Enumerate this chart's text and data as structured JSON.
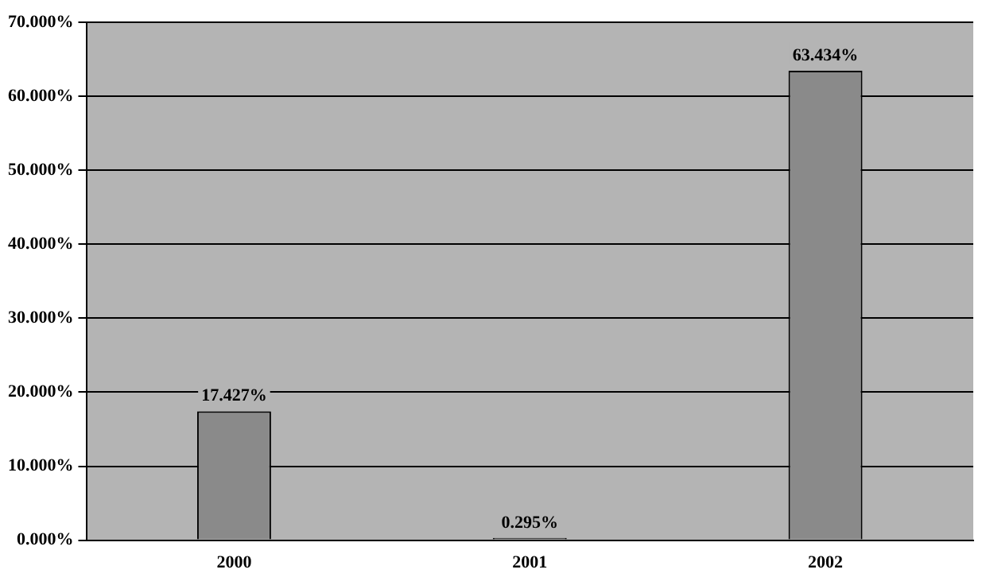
{
  "chart_data": {
    "type": "bar",
    "categories": [
      "2000",
      "2001",
      "2002"
    ],
    "values": [
      17.427,
      0.295,
      63.434
    ],
    "value_labels": [
      "17.427%",
      "0.295%",
      "63.434%"
    ],
    "color": "#8a8a8a",
    "ylim": [
      0,
      70
    ],
    "yticks": [
      {
        "value": 0,
        "label": "0.000%"
      },
      {
        "value": 10,
        "label": "10.000%"
      },
      {
        "value": 20,
        "label": "20.000%"
      },
      {
        "value": 30,
        "label": "30.000%"
      },
      {
        "value": 40,
        "label": "40.000%"
      },
      {
        "value": 50,
        "label": "50.000%"
      },
      {
        "value": 60,
        "label": "60.000%"
      },
      {
        "value": 70,
        "label": "70.000%"
      }
    ],
    "grid": "y",
    "legend": false
  }
}
